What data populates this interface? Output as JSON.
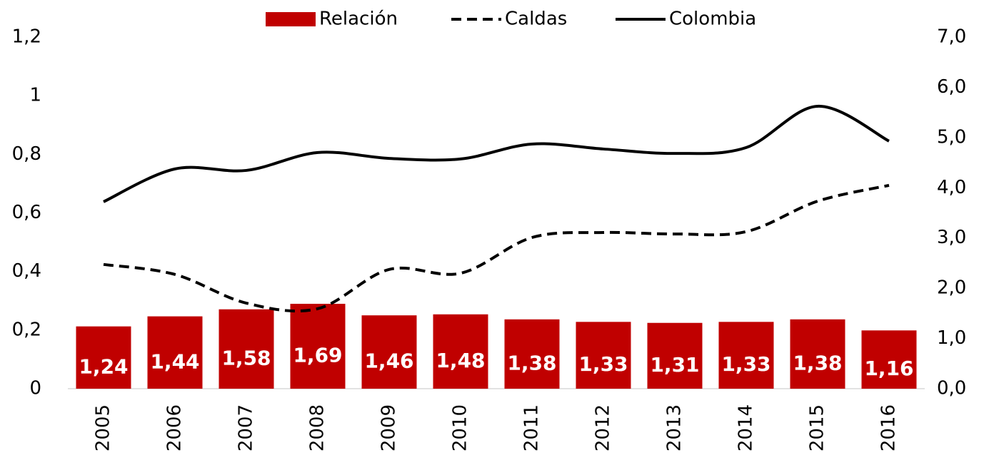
{
  "chart_data": {
    "type": "bar_line",
    "categories": [
      "2005",
      "2006",
      "2007",
      "2008",
      "2009",
      "2010",
      "2011",
      "2012",
      "2013",
      "2014",
      "2015",
      "2016"
    ],
    "series": [
      {
        "name": "Relación",
        "type": "bar",
        "axis": "y2",
        "color": "#c00000",
        "values": [
          1.24,
          1.44,
          1.58,
          1.69,
          1.46,
          1.48,
          1.38,
          1.33,
          1.31,
          1.33,
          1.38,
          1.16
        ],
        "value_labels": [
          "1,24",
          "1,44",
          "1,58",
          "1,69",
          "1,46",
          "1,48",
          "1,38",
          "1,33",
          "1,31",
          "1,33",
          "1,38",
          "1,16"
        ]
      },
      {
        "name": "Caldas",
        "type": "line",
        "dash": true,
        "color": "#000000",
        "values": [
          0.424,
          0.39,
          0.292,
          0.273,
          0.407,
          0.394,
          0.516,
          0.533,
          0.528,
          0.536,
          0.64,
          0.694
        ]
      },
      {
        "name": "Colombia",
        "type": "line",
        "dash": false,
        "color": "#000000",
        "values": [
          0.638,
          0.75,
          0.745,
          0.806,
          0.786,
          0.784,
          0.835,
          0.818,
          0.803,
          0.823,
          0.964,
          0.845
        ]
      }
    ],
    "ylim": [
      0,
      1.2
    ],
    "yticks": [
      0,
      {
        "value": 0.2,
        "label": "0,2"
      },
      {
        "value": 0.4,
        "label": "0,4"
      },
      {
        "value": 0.6,
        "label": "0,6"
      },
      {
        "value": 0.8,
        "label": "0,8"
      },
      1,
      {
        "value": 1.2,
        "label": "1,2"
      }
    ],
    "y2lim": [
      0,
      7
    ],
    "y2ticks": [
      {
        "value": 0,
        "label": "0,0"
      },
      {
        "value": 1,
        "label": "1,0"
      },
      {
        "value": 2,
        "label": "2,0"
      },
      {
        "value": 3,
        "label": "3,0"
      },
      {
        "value": 4,
        "label": "4,0"
      },
      {
        "value": 5,
        "label": "5,0"
      },
      {
        "value": 6,
        "label": "6,0"
      },
      {
        "value": 7,
        "label": "7,0"
      }
    ],
    "legend": "top"
  }
}
